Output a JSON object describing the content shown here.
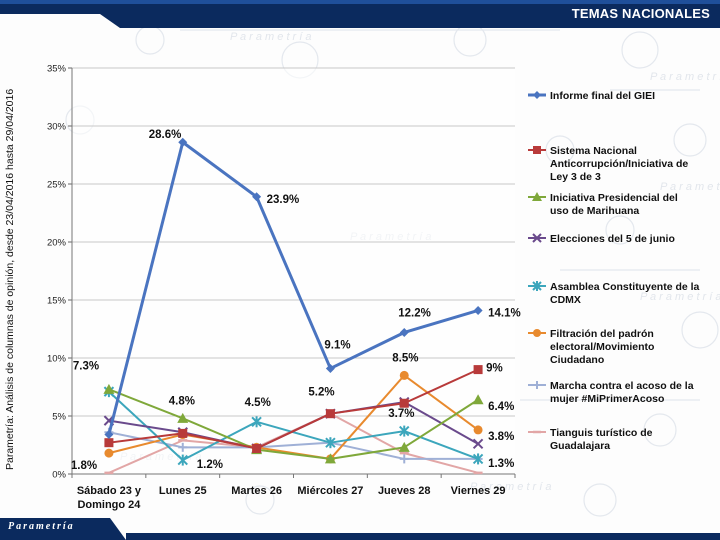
{
  "header": {
    "title": "TEMAS NACIONALES"
  },
  "side_note": "Parametría: Análisis de columnas de opinión, desde 23/04/2016 hasta 29/04/2016",
  "footer": {
    "brand": "Parametría"
  },
  "colors": {
    "header": "#0b2a5e",
    "footer": "#0b2a5e",
    "grid": "#c8c8c8"
  },
  "chart_data": {
    "type": "line",
    "title": "",
    "xlabel": "",
    "ylabel": "",
    "ylim": [
      0,
      35
    ],
    "yticks": [
      0,
      5,
      10,
      15,
      20,
      25,
      30,
      35
    ],
    "ytick_labels": [
      "0%",
      "5%",
      "10%",
      "15%",
      "20%",
      "25%",
      "30%",
      "35%"
    ],
    "grid": true,
    "legend_position": "right",
    "categories": [
      [
        "Sábado 23 y",
        "Domingo 24"
      ],
      [
        "Lunes 25"
      ],
      [
        "Martes 26"
      ],
      [
        "Miércoles 27"
      ],
      [
        "Jueves 28"
      ],
      [
        "Viernes 29"
      ]
    ],
    "series": [
      {
        "name": "Informe final del GIEI",
        "color": "#4a74c0",
        "marker": "diamond",
        "width": 3,
        "values": [
          3.4,
          28.6,
          23.9,
          9.1,
          12.2,
          14.1
        ]
      },
      {
        "name": "Sistema Nacional Anticorrupción/Iniciativa de Ley 3 de 3",
        "color": "#b83a3a",
        "marker": "square",
        "width": 2,
        "values": [
          2.7,
          3.5,
          2.2,
          5.2,
          6.1,
          9.0
        ]
      },
      {
        "name": "Iniciativa Presidencial del uso de Marihuana",
        "color": "#7fa83a",
        "marker": "triangle",
        "width": 2,
        "values": [
          7.3,
          4.8,
          2.1,
          1.3,
          2.3,
          6.4
        ]
      },
      {
        "name": "Elecciones del 5 de junio",
        "color": "#6a4a8c",
        "marker": "x",
        "width": 2,
        "values": [
          4.6,
          3.6,
          2.2,
          5.2,
          6.2,
          2.6
        ]
      },
      {
        "name": "Asamblea Constituyente de la CDMX",
        "color": "#3ca6bc",
        "marker": "star",
        "width": 2,
        "values": [
          7.1,
          1.2,
          4.5,
          2.7,
          3.7,
          1.3
        ]
      },
      {
        "name": "Filtración del padrón electoral/Movimiento Ciudadano",
        "color": "#e88a2e",
        "marker": "circle",
        "width": 2,
        "values": [
          1.8,
          3.4,
          2.3,
          1.3,
          8.5,
          3.8
        ]
      },
      {
        "name": "Marcha contra el acoso de la mujer #MiPrimerAcoso",
        "color": "#9fb0d6",
        "marker": "plus",
        "width": 2,
        "values": [
          3.6,
          2.3,
          2.3,
          2.7,
          1.3,
          1.3
        ]
      },
      {
        "name": "Tianguis turístico de Guadalajara",
        "color": "#e2a6a6",
        "marker": "dash",
        "width": 2,
        "values": [
          0.1,
          2.9,
          2.3,
          5.2,
          1.8,
          0.1
        ]
      }
    ],
    "data_labels": [
      {
        "series": 0,
        "point": 1,
        "text": "28.6%"
      },
      {
        "series": 0,
        "point": 2,
        "text": "23.9%"
      },
      {
        "series": 0,
        "point": 3,
        "text": "9.1%"
      },
      {
        "series": 0,
        "point": 4,
        "text": "12.2%"
      },
      {
        "series": 0,
        "point": 5,
        "text": "14.1%"
      },
      {
        "series": 1,
        "point": 5,
        "text": "9%"
      },
      {
        "series": 2,
        "point": 0,
        "text": "7.3%"
      },
      {
        "series": 2,
        "point": 1,
        "text": "4.8%"
      },
      {
        "series": 2,
        "point": 5,
        "text": "6.4%"
      },
      {
        "series": 4,
        "point": 1,
        "text": "1.2%"
      },
      {
        "series": 4,
        "point": 2,
        "text": "4.5%"
      },
      {
        "series": 4,
        "point": 4,
        "text": "3.7%"
      },
      {
        "series": 4,
        "point": 5,
        "text": "1.3%"
      },
      {
        "series": 5,
        "point": 0,
        "text": "1.8%"
      },
      {
        "series": 5,
        "point": 4,
        "text": "8.5%"
      },
      {
        "series": 5,
        "point": 5,
        "text": "3.8%"
      },
      {
        "series": 3,
        "point": 3,
        "text": "5.2%"
      }
    ]
  }
}
